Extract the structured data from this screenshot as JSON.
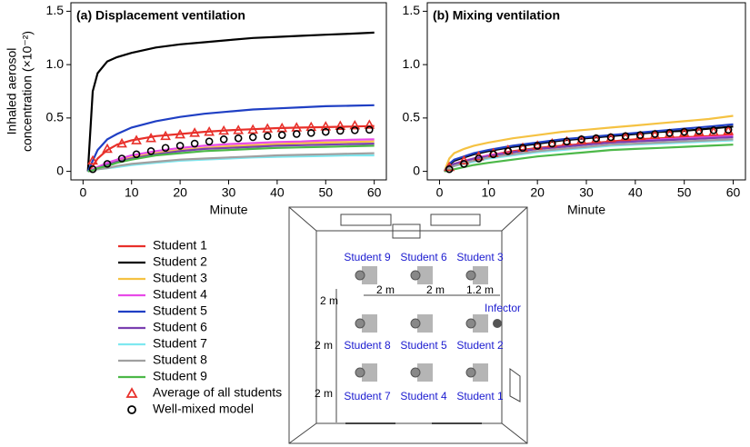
{
  "chart_data": [
    {
      "type": "line",
      "title": "(a) Displacement ventilation",
      "ylabel": [
        "Inhaled aerosol",
        "concentration (×10⁻²)"
      ],
      "xlabel": "Minute",
      "xlim": [
        -2.5,
        62.5
      ],
      "xticks": [
        0,
        10,
        20,
        30,
        40,
        50,
        60
      ],
      "ylim": [
        -0.08,
        1.58
      ],
      "yticks": [
        0,
        0.5,
        {
          "value": 1,
          "label": "1.0"
        },
        1.5
      ],
      "x": [
        1,
        2,
        3,
        5,
        7,
        10,
        15,
        20,
        25,
        30,
        35,
        40,
        45,
        50,
        55,
        60
      ],
      "series": [
        {
          "name": "Student 1",
          "color": "#e8302a",
          "values": [
            0,
            0.05,
            0.12,
            0.2,
            0.25,
            0.29,
            0.33,
            0.35,
            0.37,
            0.385,
            0.395,
            0.405,
            0.41,
            0.415,
            0.42,
            0.425
          ]
        },
        {
          "name": "Student 2",
          "color": "#000000",
          "values": [
            0,
            0.75,
            0.92,
            1.03,
            1.07,
            1.11,
            1.16,
            1.19,
            1.21,
            1.23,
            1.25,
            1.26,
            1.27,
            1.28,
            1.29,
            1.3
          ]
        },
        {
          "name": "Student 3",
          "color": "#f5c242",
          "values": [
            0,
            0.02,
            0.04,
            0.07,
            0.1,
            0.13,
            0.17,
            0.2,
            0.22,
            0.235,
            0.245,
            0.255,
            0.265,
            0.27,
            0.275,
            0.28
          ]
        },
        {
          "name": "Student 4",
          "color": "#e84ae8",
          "values": [
            0,
            0.02,
            0.04,
            0.08,
            0.11,
            0.15,
            0.19,
            0.22,
            0.24,
            0.255,
            0.265,
            0.275,
            0.28,
            0.29,
            0.295,
            0.3
          ]
        },
        {
          "name": "Student 5",
          "color": "#1f3fc4",
          "values": [
            0,
            0.1,
            0.2,
            0.3,
            0.35,
            0.41,
            0.47,
            0.51,
            0.54,
            0.56,
            0.58,
            0.59,
            0.6,
            0.61,
            0.615,
            0.62
          ]
        },
        {
          "name": "Student 6",
          "color": "#7a3fb0",
          "values": [
            0,
            0.01,
            0.03,
            0.06,
            0.09,
            0.12,
            0.16,
            0.19,
            0.21,
            0.22,
            0.23,
            0.24,
            0.245,
            0.25,
            0.255,
            0.26
          ]
        },
        {
          "name": "Student 7",
          "color": "#7ee8f0",
          "values": [
            0,
            0.01,
            0.02,
            0.03,
            0.04,
            0.06,
            0.08,
            0.1,
            0.11,
            0.12,
            0.13,
            0.135,
            0.14,
            0.145,
            0.15,
            0.15
          ]
        },
        {
          "name": "Student 8",
          "color": "#a0a0a0",
          "values": [
            0,
            0.01,
            0.02,
            0.03,
            0.05,
            0.07,
            0.09,
            0.11,
            0.12,
            0.13,
            0.14,
            0.15,
            0.155,
            0.16,
            0.165,
            0.17
          ]
        },
        {
          "name": "Student 9",
          "color": "#4cb848",
          "values": [
            0,
            0.01,
            0.03,
            0.05,
            0.08,
            0.11,
            0.15,
            0.17,
            0.19,
            0.2,
            0.21,
            0.22,
            0.225,
            0.23,
            0.235,
            0.24
          ]
        },
        {
          "name": "Average of all students",
          "color": "#e8302a",
          "marker": "triangle",
          "x": [
            2,
            5,
            8,
            11,
            14,
            17,
            20,
            23,
            26,
            29,
            32,
            35,
            38,
            41,
            44,
            47,
            50,
            53,
            56,
            59
          ],
          "values": [
            0.1,
            0.21,
            0.26,
            0.29,
            0.31,
            0.33,
            0.345,
            0.36,
            0.37,
            0.38,
            0.385,
            0.39,
            0.4,
            0.405,
            0.41,
            0.415,
            0.42,
            0.425,
            0.43,
            0.435
          ]
        },
        {
          "name": "Well-mixed model",
          "color": "#000000",
          "marker": "circle",
          "x": [
            2,
            5,
            8,
            11,
            14,
            17,
            20,
            23,
            26,
            29,
            32,
            35,
            38,
            41,
            44,
            47,
            50,
            53,
            56,
            59
          ],
          "values": [
            0.02,
            0.07,
            0.12,
            0.16,
            0.19,
            0.22,
            0.24,
            0.26,
            0.28,
            0.3,
            0.31,
            0.32,
            0.33,
            0.34,
            0.35,
            0.36,
            0.37,
            0.38,
            0.385,
            0.39
          ]
        }
      ]
    },
    {
      "type": "line",
      "title": "(b) Mixing ventilation",
      "xlabel": "Minute",
      "xlim": [
        -2.5,
        62.5
      ],
      "xticks": [
        0,
        10,
        20,
        30,
        40,
        50,
        60
      ],
      "ylim": [
        -0.08,
        1.58
      ],
      "yticks": [
        0,
        0.5,
        {
          "value": 1,
          "label": "1.0"
        },
        1.5
      ],
      "x": [
        1,
        2,
        3,
        5,
        7,
        10,
        15,
        20,
        25,
        30,
        35,
        40,
        45,
        50,
        55,
        60
      ],
      "series": [
        {
          "name": "Student 1",
          "color": "#e8302a",
          "values": [
            0,
            0.04,
            0.07,
            0.1,
            0.12,
            0.15,
            0.19,
            0.22,
            0.24,
            0.26,
            0.28,
            0.3,
            0.31,
            0.32,
            0.33,
            0.34
          ]
        },
        {
          "name": "Student 2",
          "color": "#000000",
          "values": [
            0,
            0.06,
            0.1,
            0.13,
            0.16,
            0.19,
            0.23,
            0.26,
            0.29,
            0.31,
            0.33,
            0.35,
            0.37,
            0.38,
            0.4,
            0.42
          ]
        },
        {
          "name": "Student 3",
          "color": "#f5c242",
          "values": [
            0,
            0.12,
            0.17,
            0.21,
            0.24,
            0.27,
            0.31,
            0.34,
            0.37,
            0.39,
            0.41,
            0.43,
            0.45,
            0.47,
            0.49,
            0.52
          ]
        },
        {
          "name": "Student 4",
          "color": "#e84ae8",
          "values": [
            0,
            0.04,
            0.07,
            0.1,
            0.12,
            0.15,
            0.18,
            0.21,
            0.23,
            0.25,
            0.27,
            0.28,
            0.3,
            0.31,
            0.32,
            0.33
          ]
        },
        {
          "name": "Student 5",
          "color": "#1f3fc4",
          "values": [
            0,
            0.07,
            0.11,
            0.14,
            0.17,
            0.2,
            0.24,
            0.27,
            0.3,
            0.32,
            0.34,
            0.36,
            0.38,
            0.4,
            0.42,
            0.44
          ]
        },
        {
          "name": "Student 6",
          "color": "#7a3fb0",
          "values": [
            0,
            0.04,
            0.07,
            0.09,
            0.12,
            0.14,
            0.18,
            0.21,
            0.23,
            0.25,
            0.27,
            0.28,
            0.29,
            0.3,
            0.31,
            0.32
          ]
        },
        {
          "name": "Student 7",
          "color": "#7ee8f0",
          "values": [
            0,
            0.03,
            0.05,
            0.07,
            0.09,
            0.12,
            0.15,
            0.18,
            0.2,
            0.22,
            0.24,
            0.25,
            0.26,
            0.27,
            0.28,
            0.29
          ]
        },
        {
          "name": "Student 8",
          "color": "#a0a0a0",
          "values": [
            0,
            0.03,
            0.05,
            0.08,
            0.1,
            0.13,
            0.16,
            0.19,
            0.21,
            0.23,
            0.25,
            0.26,
            0.27,
            0.28,
            0.29,
            0.3
          ]
        },
        {
          "name": "Student 9",
          "color": "#4cb848",
          "values": [
            0,
            0.01,
            0.02,
            0.04,
            0.06,
            0.08,
            0.11,
            0.14,
            0.16,
            0.18,
            0.2,
            0.21,
            0.22,
            0.23,
            0.24,
            0.25
          ]
        },
        {
          "name": "Average of all students",
          "color": "#e8302a",
          "marker": "triangle",
          "x": [
            2,
            5,
            8,
            11,
            14,
            17,
            20,
            23,
            26,
            29,
            32,
            35,
            38,
            41,
            44,
            47,
            50,
            53,
            56,
            59
          ],
          "values": [
            0.04,
            0.1,
            0.14,
            0.17,
            0.2,
            0.22,
            0.24,
            0.26,
            0.28,
            0.29,
            0.3,
            0.31,
            0.32,
            0.33,
            0.34,
            0.35,
            0.36,
            0.37,
            0.37,
            0.38
          ]
        },
        {
          "name": "Well-mixed model",
          "color": "#000000",
          "marker": "circle",
          "x": [
            2,
            5,
            8,
            11,
            14,
            17,
            20,
            23,
            26,
            29,
            32,
            35,
            38,
            41,
            44,
            47,
            50,
            53,
            56,
            59
          ],
          "values": [
            0.02,
            0.07,
            0.12,
            0.16,
            0.19,
            0.22,
            0.24,
            0.26,
            0.28,
            0.3,
            0.31,
            0.32,
            0.33,
            0.34,
            0.35,
            0.36,
            0.37,
            0.38,
            0.385,
            0.39
          ]
        }
      ]
    }
  ],
  "diagram": {
    "students": [
      "Student 9",
      "Student 6",
      "Student 3",
      "Student 8",
      "Student 5",
      "Student 2",
      "Student 7",
      "Student 4",
      "Student 1"
    ],
    "horizontal": [
      "2 m",
      "2 m",
      "1.2 m"
    ],
    "vertical": [
      "2 m",
      "2 m",
      "2 m"
    ],
    "infector": "Infector"
  }
}
